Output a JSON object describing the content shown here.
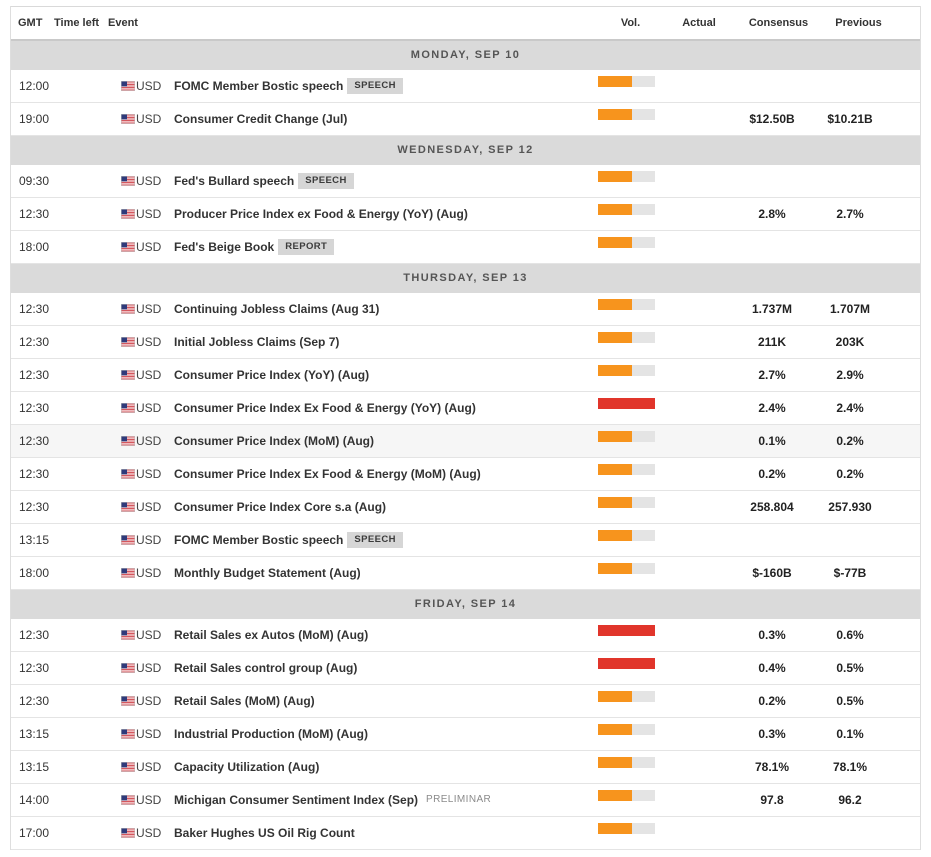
{
  "header": {
    "gmt": "GMT",
    "time_left": "Time left",
    "event": "Event",
    "vol": "Vol.",
    "actual": "Actual",
    "consensus": "Consensus",
    "previous": "Previous"
  },
  "currency_flags": {
    "USD": "us-flag-icon"
  },
  "days": [
    {
      "label": "MONDAY, SEP 10",
      "events": [
        {
          "time": "12:00",
          "currency": "USD",
          "name": "FOMC Member Bostic speech",
          "tag": {
            "text": "SPEECH",
            "style": "badge"
          },
          "vol": {
            "fill": 0.6,
            "color": "#f7941d"
          }
        },
        {
          "time": "19:00",
          "currency": "USD",
          "name": "Consumer Credit Change (Jul)",
          "vol": {
            "fill": 0.6,
            "color": "#f7941d"
          },
          "consensus": "$12.50B",
          "previous": "$10.21B"
        }
      ]
    },
    {
      "label": "WEDNESDAY, SEP 12",
      "events": [
        {
          "time": "09:30",
          "currency": "USD",
          "name": "Fed's Bullard speech",
          "tag": {
            "text": "SPEECH",
            "style": "badge"
          },
          "vol": {
            "fill": 0.6,
            "color": "#f7941d"
          }
        },
        {
          "time": "12:30",
          "currency": "USD",
          "name": "Producer Price Index ex Food & Energy (YoY) (Aug)",
          "vol": {
            "fill": 0.6,
            "color": "#f7941d"
          },
          "consensus": "2.8%",
          "previous": "2.7%"
        },
        {
          "time": "18:00",
          "currency": "USD",
          "name": "Fed's Beige Book",
          "tag": {
            "text": "REPORT",
            "style": "badge"
          },
          "vol": {
            "fill": 0.6,
            "color": "#f7941d"
          }
        }
      ]
    },
    {
      "label": "THURSDAY, SEP 13",
      "events": [
        {
          "time": "12:30",
          "currency": "USD",
          "name": "Continuing Jobless Claims (Aug 31)",
          "vol": {
            "fill": 0.6,
            "color": "#f7941d"
          },
          "consensus": "1.737M",
          "previous": "1.707M"
        },
        {
          "time": "12:30",
          "currency": "USD",
          "name": "Initial Jobless Claims (Sep 7)",
          "vol": {
            "fill": 0.6,
            "color": "#f7941d"
          },
          "consensus": "211K",
          "previous": "203K"
        },
        {
          "time": "12:30",
          "currency": "USD",
          "name": "Consumer Price Index (YoY) (Aug)",
          "vol": {
            "fill": 0.6,
            "color": "#f7941d"
          },
          "consensus": "2.7%",
          "previous": "2.9%"
        },
        {
          "time": "12:30",
          "currency": "USD",
          "name": "Consumer Price Index Ex Food & Energy (YoY) (Aug)",
          "vol": {
            "fill": 1.0,
            "color": "#e1352b"
          },
          "consensus": "2.4%",
          "previous": "2.4%"
        },
        {
          "time": "12:30",
          "currency": "USD",
          "name": "Consumer Price Index (MoM) (Aug)",
          "vol": {
            "fill": 0.6,
            "color": "#f7941d"
          },
          "consensus": "0.1%",
          "previous": "0.2%",
          "highlighted": true
        },
        {
          "time": "12:30",
          "currency": "USD",
          "name": "Consumer Price Index Ex Food & Energy (MoM) (Aug)",
          "vol": {
            "fill": 0.6,
            "color": "#f7941d"
          },
          "consensus": "0.2%",
          "previous": "0.2%"
        },
        {
          "time": "12:30",
          "currency": "USD",
          "name": "Consumer Price Index Core s.a (Aug)",
          "vol": {
            "fill": 0.6,
            "color": "#f7941d"
          },
          "consensus": "258.804",
          "previous": "257.930"
        },
        {
          "time": "13:15",
          "currency": "USD",
          "name": "FOMC Member Bostic speech",
          "tag": {
            "text": "SPEECH",
            "style": "badge"
          },
          "vol": {
            "fill": 0.6,
            "color": "#f7941d"
          }
        },
        {
          "time": "18:00",
          "currency": "USD",
          "name": "Monthly Budget Statement (Aug)",
          "vol": {
            "fill": 0.6,
            "color": "#f7941d"
          },
          "consensus": "$-160B",
          "previous": "$-77B"
        }
      ]
    },
    {
      "label": "FRIDAY, SEP 14",
      "events": [
        {
          "time": "12:30",
          "currency": "USD",
          "name": "Retail Sales ex Autos (MoM) (Aug)",
          "vol": {
            "fill": 1.0,
            "color": "#e1352b"
          },
          "consensus": "0.3%",
          "previous": "0.6%"
        },
        {
          "time": "12:30",
          "currency": "USD",
          "name": "Retail Sales control group (Aug)",
          "vol": {
            "fill": 1.0,
            "color": "#e1352b"
          },
          "consensus": "0.4%",
          "previous": "0.5%"
        },
        {
          "time": "12:30",
          "currency": "USD",
          "name": "Retail Sales (MoM) (Aug)",
          "vol": {
            "fill": 0.6,
            "color": "#f7941d"
          },
          "consensus": "0.2%",
          "previous": "0.5%"
        },
        {
          "time": "13:15",
          "currency": "USD",
          "name": "Industrial Production (MoM) (Aug)",
          "vol": {
            "fill": 0.6,
            "color": "#f7941d"
          },
          "consensus": "0.3%",
          "previous": "0.1%"
        },
        {
          "time": "13:15",
          "currency": "USD",
          "name": "Capacity Utilization (Aug)",
          "vol": {
            "fill": 0.6,
            "color": "#f7941d"
          },
          "consensus": "78.1%",
          "previous": "78.1%"
        },
        {
          "time": "14:00",
          "currency": "USD",
          "name": "Michigan Consumer Sentiment Index (Sep)",
          "tag": {
            "text": "PRELIMINAR",
            "style": "note"
          },
          "vol": {
            "fill": 0.6,
            "color": "#f7941d"
          },
          "consensus": "97.8",
          "previous": "96.2"
        },
        {
          "time": "17:00",
          "currency": "USD",
          "name": "Baker Hughes US Oil Rig Count",
          "vol": {
            "fill": 0.6,
            "color": "#f7941d"
          }
        }
      ]
    }
  ]
}
